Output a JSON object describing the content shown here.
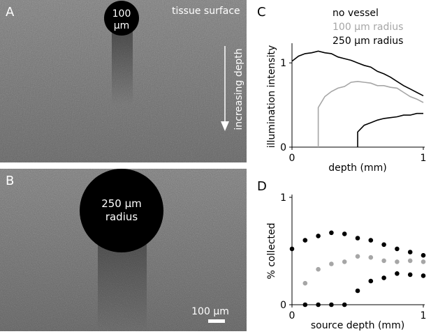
{
  "panel_a": {
    "letter": "A",
    "vessel_label_1": "100",
    "vessel_label_2": "μm",
    "surface_label": "tissue surface",
    "depth_label": "increasing depth"
  },
  "panel_b": {
    "letter": "B",
    "vessel_label_1": "250 μm",
    "vessel_label_2": "radius",
    "scalebar_label": "100 μm"
  },
  "chart_data": [
    {
      "panel": "C",
      "type": "line",
      "xlabel": "depth (mm)",
      "ylabel": "illumination intensity",
      "xlim": [
        0,
        1
      ],
      "ylim": [
        0,
        1.2
      ],
      "xticks": [
        "0",
        "1"
      ],
      "yticks": [
        "0",
        "1"
      ],
      "legend": [
        "no vessel",
        "100 μm radius",
        "250 μm radius"
      ],
      "legend_position": "top-right",
      "series": [
        {
          "name": "no vessel",
          "color": "#000000",
          "x": [
            0,
            0.05,
            0.1,
            0.15,
            0.2,
            0.25,
            0.3,
            0.35,
            0.4,
            0.45,
            0.5,
            0.55,
            0.6,
            0.65,
            0.7,
            0.75,
            0.8,
            0.85,
            0.9,
            0.95,
            1.0
          ],
          "y": [
            1.02,
            1.08,
            1.11,
            1.12,
            1.14,
            1.12,
            1.11,
            1.07,
            1.05,
            1.03,
            1.0,
            0.97,
            0.95,
            0.9,
            0.87,
            0.83,
            0.78,
            0.73,
            0.69,
            0.65,
            0.61
          ]
        },
        {
          "name": "100 μm radius",
          "color": "#a6a6a6",
          "x": [
            0.2,
            0.2,
            0.25,
            0.3,
            0.35,
            0.4,
            0.45,
            0.5,
            0.55,
            0.6,
            0.65,
            0.7,
            0.75,
            0.8,
            0.85,
            0.9,
            0.95,
            1.0
          ],
          "y": [
            0,
            0.47,
            0.6,
            0.66,
            0.7,
            0.72,
            0.77,
            0.78,
            0.77,
            0.76,
            0.73,
            0.73,
            0.71,
            0.7,
            0.65,
            0.6,
            0.57,
            0.53
          ]
        },
        {
          "name": "250 μm radius",
          "color": "#000000",
          "x": [
            0.5,
            0.5,
            0.55,
            0.6,
            0.65,
            0.7,
            0.75,
            0.8,
            0.85,
            0.9,
            0.95,
            1.0
          ],
          "y": [
            0,
            0.18,
            0.26,
            0.29,
            0.32,
            0.34,
            0.35,
            0.36,
            0.38,
            0.38,
            0.4,
            0.4
          ]
        }
      ]
    },
    {
      "panel": "D",
      "type": "scatter",
      "xlabel": "source depth (mm)",
      "ylabel": "% collected",
      "xlim": [
        0,
        1
      ],
      "ylim": [
        0,
        1
      ],
      "xticks": [
        "0",
        "1"
      ],
      "yticks": [
        "0",
        "1"
      ],
      "series": [
        {
          "name": "no vessel",
          "color": "#000000",
          "x": [
            0,
            0.1,
            0.2,
            0.3,
            0.4,
            0.5,
            0.6,
            0.7,
            0.8,
            0.9,
            1.0
          ],
          "y": [
            0.52,
            0.6,
            0.64,
            0.67,
            0.66,
            0.62,
            0.6,
            0.56,
            0.52,
            0.49,
            0.46
          ]
        },
        {
          "name": "100 μm radius",
          "color": "#a6a6a6",
          "x": [
            0.1,
            0.2,
            0.3,
            0.4,
            0.5,
            0.6,
            0.7,
            0.8,
            0.9,
            1.0
          ],
          "y": [
            0.2,
            0.33,
            0.38,
            0.4,
            0.45,
            0.44,
            0.41,
            0.4,
            0.41,
            0.4
          ]
        },
        {
          "name": "250 μm radius",
          "color": "#000000",
          "x": [
            0.1,
            0.2,
            0.3,
            0.4,
            0.5,
            0.6,
            0.7,
            0.8,
            0.9,
            1.0
          ],
          "y": [
            0,
            0,
            0,
            0,
            0.13,
            0.22,
            0.25,
            0.29,
            0.28,
            0.27
          ]
        }
      ]
    }
  ]
}
